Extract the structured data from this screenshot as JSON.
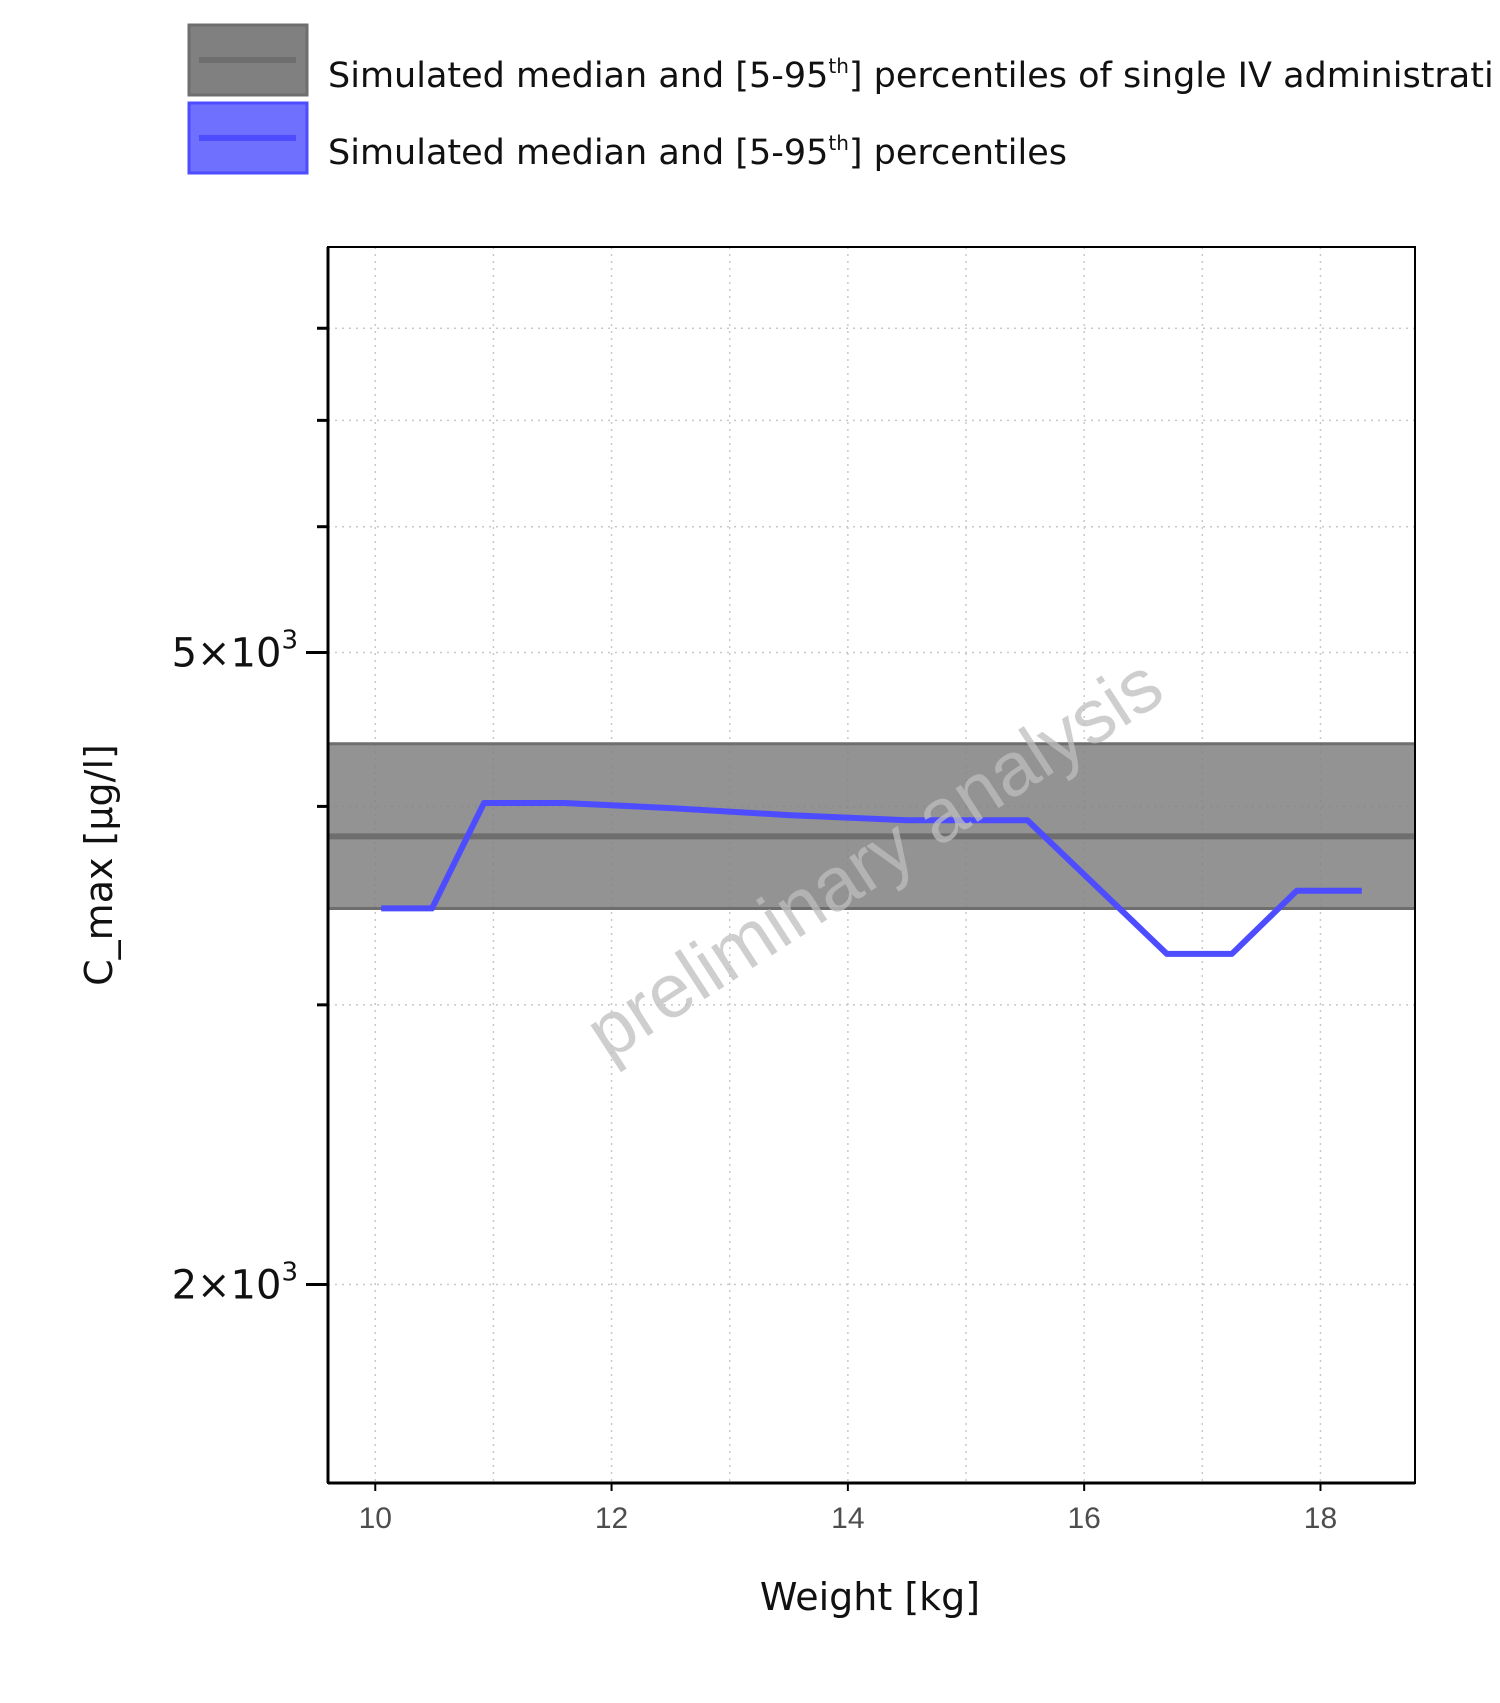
{
  "legend": {
    "items": [
      {
        "label_main": "Simulated median and [5-95",
        "label_sup": "th",
        "label_tail": "] percentiles of single IV administrati",
        "fill": "#808080",
        "line": "#6e6e6e"
      },
      {
        "label_main": "Simulated median and [5-95",
        "label_sup": "th",
        "label_tail": "] percentiles",
        "fill": "#7070ff",
        "line": "#4d4dff"
      }
    ]
  },
  "watermark": "preliminary analysis",
  "chart_data": {
    "type": "line",
    "xlabel": "Weight [kg]",
    "ylabel": "C_max [µg/l]",
    "xlim": [
      9.6,
      18.8
    ],
    "ylim": [
      1500,
      9000
    ],
    "y_scale": "log",
    "grid": true,
    "legend_position": "top",
    "x_ticks": [
      {
        "value": 10,
        "label": "10"
      },
      {
        "value": 12,
        "label": "12"
      },
      {
        "value": 14,
        "label": "14"
      },
      {
        "value": 16,
        "label": "16"
      },
      {
        "value": 18,
        "label": "18"
      }
    ],
    "y_major_ticks": [
      {
        "value": 2000,
        "mantissa": "2",
        "base": "×10",
        "exponent": "3"
      },
      {
        "value": 5000,
        "mantissa": "5",
        "base": "×10",
        "exponent": "3"
      }
    ],
    "y_minor_ticks": [
      3000,
      4000,
      6000,
      7000,
      8000
    ],
    "x_minor_grid": [
      11,
      13,
      15,
      17
    ],
    "reference_band": {
      "median": 3830,
      "p5": 3450,
      "p95": 4380,
      "color": "#808080"
    },
    "series": [
      {
        "color": "#4d4dff",
        "x": [
          10.05,
          10.48,
          10.92,
          11.6,
          12.5,
          13.5,
          14.5,
          15.52,
          16.7,
          17.25,
          17.8,
          18.35
        ],
        "y": [
          3450,
          3450,
          4020,
          4020,
          3990,
          3950,
          3920,
          3920,
          3230,
          3230,
          3540,
          3540
        ]
      }
    ]
  }
}
